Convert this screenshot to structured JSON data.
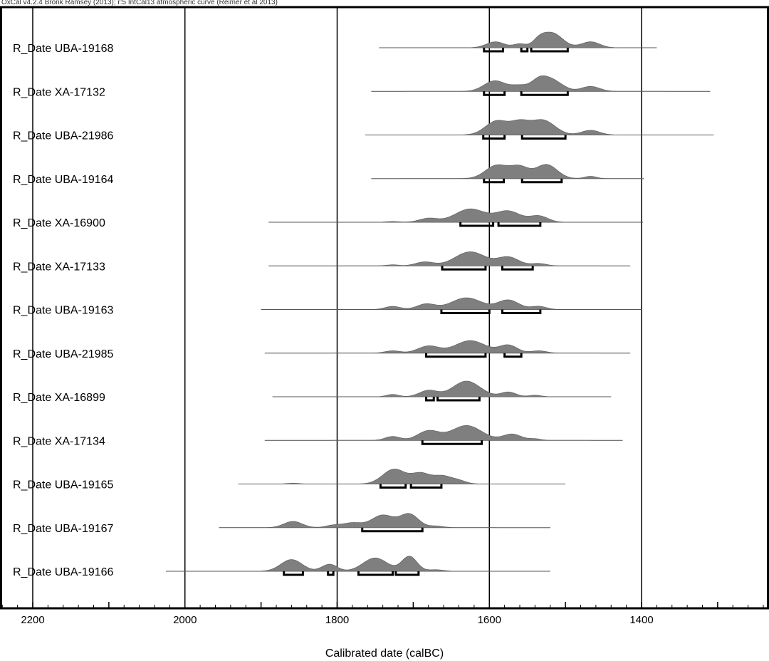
{
  "header": {
    "note": "OxCal v4.2.4 Bronk Ramsey (2013); r:5 IntCal13 atmospheric curve (Reimer et al 2013)"
  },
  "colors": {
    "distribution_fill": "#7f7f7f",
    "distribution_edge": "#5a5a5a",
    "frame": "#000000",
    "baseline": "#555555"
  },
  "chart_data": {
    "type": "area",
    "title": "",
    "xlabel": "Calibrated date (calBC)",
    "ylabel": "",
    "xlim": [
      2200,
      1400
    ],
    "x_reversed": true,
    "major_ticks": [
      2200,
      2000,
      1800,
      1600,
      1400
    ],
    "tick_labels": [
      "2200",
      "2000",
      "1800",
      "1600",
      "1400"
    ],
    "minor_tick_step": 20,
    "gridlines": [
      2200,
      2000,
      1800,
      1600,
      1400
    ],
    "series": [
      {
        "name": "R_Date UBA-19168",
        "range": [
          1745,
          1380
        ],
        "peaks": [
          [
            1592,
            0.4,
            12
          ],
          [
            1560,
            0.25,
            8
          ],
          [
            1535,
            0.35,
            8
          ],
          [
            1518,
            1.0,
            14
          ],
          [
            1467,
            0.4,
            12
          ]
        ],
        "intervals": [
          [
            1607,
            1582
          ],
          [
            1558,
            1550
          ],
          [
            1545,
            1497
          ]
        ]
      },
      {
        "name": "R_Date XA-17132",
        "range": [
          1755,
          1310
        ],
        "peaks": [
          [
            1593,
            0.85,
            14
          ],
          [
            1560,
            0.45,
            12
          ],
          [
            1535,
            0.7,
            10
          ],
          [
            1518,
            0.9,
            14
          ],
          [
            1467,
            0.4,
            12
          ]
        ],
        "intervals": [
          [
            1607,
            1580
          ],
          [
            1558,
            1497
          ]
        ]
      },
      {
        "name": "R_Date UBA-21986",
        "range": [
          1763,
          1305
        ],
        "peaks": [
          [
            1590,
            0.9,
            15
          ],
          [
            1560,
            0.7,
            12
          ],
          [
            1530,
            0.95,
            16
          ],
          [
            1467,
            0.3,
            12
          ]
        ],
        "intervals": [
          [
            1608,
            1580
          ],
          [
            1557,
            1500
          ]
        ]
      },
      {
        "name": "R_Date UBA-19164",
        "range": [
          1755,
          1397
        ],
        "peaks": [
          [
            1590,
            0.85,
            15
          ],
          [
            1560,
            0.7,
            12
          ],
          [
            1525,
            0.9,
            14
          ],
          [
            1467,
            0.15,
            8
          ]
        ],
        "intervals": [
          [
            1607,
            1581
          ],
          [
            1557,
            1505
          ]
        ]
      },
      {
        "name": "R_Date XA-16900",
        "range": [
          1890,
          1398
        ],
        "peaks": [
          [
            1727,
            0.05,
            8
          ],
          [
            1680,
            0.25,
            12
          ],
          [
            1625,
            0.85,
            20
          ],
          [
            1575,
            0.7,
            16
          ],
          [
            1535,
            0.4,
            12
          ]
        ],
        "intervals": [
          [
            1638,
            1595
          ],
          [
            1588,
            1533
          ]
        ]
      },
      {
        "name": "R_Date XA-17133",
        "range": [
          1890,
          1415
        ],
        "peaks": [
          [
            1727,
            0.07,
            8
          ],
          [
            1685,
            0.25,
            12
          ],
          [
            1625,
            0.9,
            20
          ],
          [
            1575,
            0.55,
            14
          ],
          [
            1535,
            0.15,
            10
          ]
        ],
        "intervals": [
          [
            1662,
            1605
          ],
          [
            1583,
            1543
          ]
        ]
      },
      {
        "name": "R_Date UBA-19163",
        "range": [
          1900,
          1400
        ],
        "peaks": [
          [
            1727,
            0.2,
            10
          ],
          [
            1683,
            0.35,
            12
          ],
          [
            1630,
            0.75,
            20
          ],
          [
            1575,
            0.6,
            14
          ],
          [
            1535,
            0.2,
            10
          ]
        ],
        "intervals": [
          [
            1663,
            1600
          ],
          [
            1583,
            1533
          ]
        ]
      },
      {
        "name": "R_Date UBA-21985",
        "range": [
          1895,
          1415
        ],
        "peaks": [
          [
            1727,
            0.15,
            10
          ],
          [
            1680,
            0.45,
            14
          ],
          [
            1625,
            0.8,
            20
          ],
          [
            1575,
            0.5,
            12
          ],
          [
            1535,
            0.15,
            10
          ]
        ],
        "intervals": [
          [
            1683,
            1605
          ],
          [
            1580,
            1558
          ]
        ]
      },
      {
        "name": "R_Date XA-16899",
        "range": [
          1885,
          1440
        ],
        "peaks": [
          [
            1727,
            0.15,
            8
          ],
          [
            1680,
            0.4,
            12
          ],
          [
            1630,
            1.0,
            18
          ],
          [
            1575,
            0.3,
            10
          ],
          [
            1540,
            0.1,
            8
          ]
        ],
        "intervals": [
          [
            1683,
            1673
          ],
          [
            1668,
            1613
          ]
        ]
      },
      {
        "name": "R_Date XA-17134",
        "range": [
          1895,
          1425
        ],
        "peaks": [
          [
            1727,
            0.25,
            10
          ],
          [
            1680,
            0.6,
            14
          ],
          [
            1630,
            0.95,
            20
          ],
          [
            1570,
            0.4,
            12
          ],
          [
            1540,
            0.1,
            8
          ]
        ],
        "intervals": [
          [
            1688,
            1610
          ]
        ]
      },
      {
        "name": "R_Date UBA-19165",
        "range": [
          1930,
          1500
        ],
        "peaks": [
          [
            1858,
            0.05,
            8
          ],
          [
            1725,
            0.95,
            15
          ],
          [
            1690,
            0.65,
            12
          ],
          [
            1662,
            0.5,
            12
          ],
          [
            1640,
            0.2,
            10
          ]
        ],
        "intervals": [
          [
            1743,
            1710
          ],
          [
            1703,
            1663
          ]
        ]
      },
      {
        "name": "R_Date UBA-19167",
        "range": [
          1955,
          1520
        ],
        "peaks": [
          [
            1858,
            0.4,
            12
          ],
          [
            1805,
            0.15,
            10
          ],
          [
            1780,
            0.3,
            12
          ],
          [
            1740,
            0.8,
            15
          ],
          [
            1705,
            0.85,
            12
          ],
          [
            1670,
            0.1,
            10
          ]
        ],
        "intervals": [
          [
            1767,
            1688
          ]
        ]
      },
      {
        "name": "R_Date UBA-19166",
        "range": [
          2025,
          1520
        ],
        "peaks": [
          [
            1860,
            0.75,
            14
          ],
          [
            1810,
            0.45,
            10
          ],
          [
            1750,
            0.85,
            16
          ],
          [
            1705,
            0.95,
            10
          ],
          [
            1670,
            0.1,
            10
          ]
        ],
        "intervals": [
          [
            1870,
            1845
          ],
          [
            1812,
            1805
          ],
          [
            1772,
            1727
          ],
          [
            1723,
            1693
          ]
        ]
      }
    ]
  }
}
